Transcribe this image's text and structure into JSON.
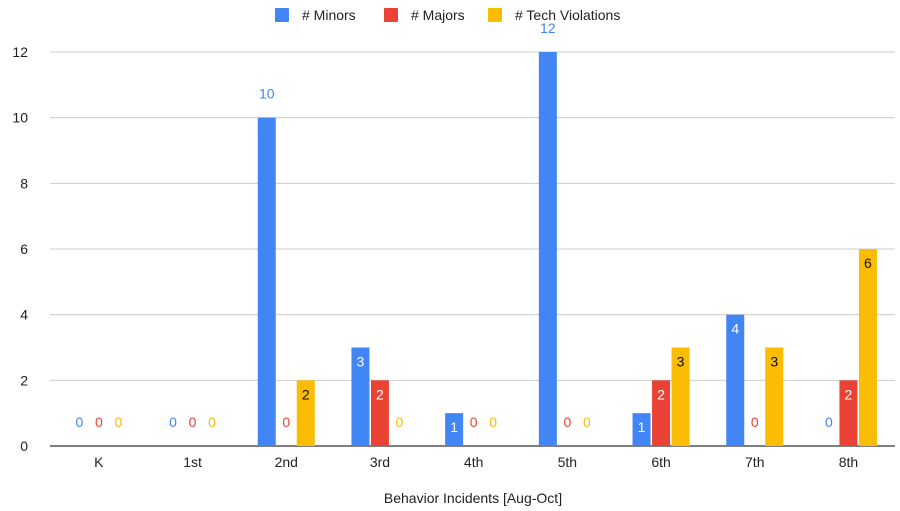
{
  "chart_data": {
    "type": "bar",
    "title": "",
    "xlabel": "Behavior Incidents [Aug-Oct]",
    "ylabel": "",
    "ylim": [
      0,
      12
    ],
    "yticks": [
      0,
      2,
      4,
      6,
      8,
      10,
      12
    ],
    "grid": true,
    "legend_position": "top",
    "categories": [
      "K",
      "1st",
      "2nd",
      "3rd",
      "4th",
      "5th",
      "6th",
      "7th",
      "8th"
    ],
    "series": [
      {
        "name": "# Minors",
        "color": "#4285f4",
        "values": [
          0,
          0,
          10,
          3,
          1,
          12,
          1,
          4,
          0
        ]
      },
      {
        "name": "# Majors",
        "color": "#ea4335",
        "values": [
          0,
          0,
          0,
          2,
          0,
          0,
          2,
          0,
          2
        ]
      },
      {
        "name": "# Tech Violations",
        "color": "#fbbc04",
        "values": [
          0,
          0,
          2,
          0,
          0,
          0,
          3,
          3,
          6
        ]
      }
    ]
  }
}
